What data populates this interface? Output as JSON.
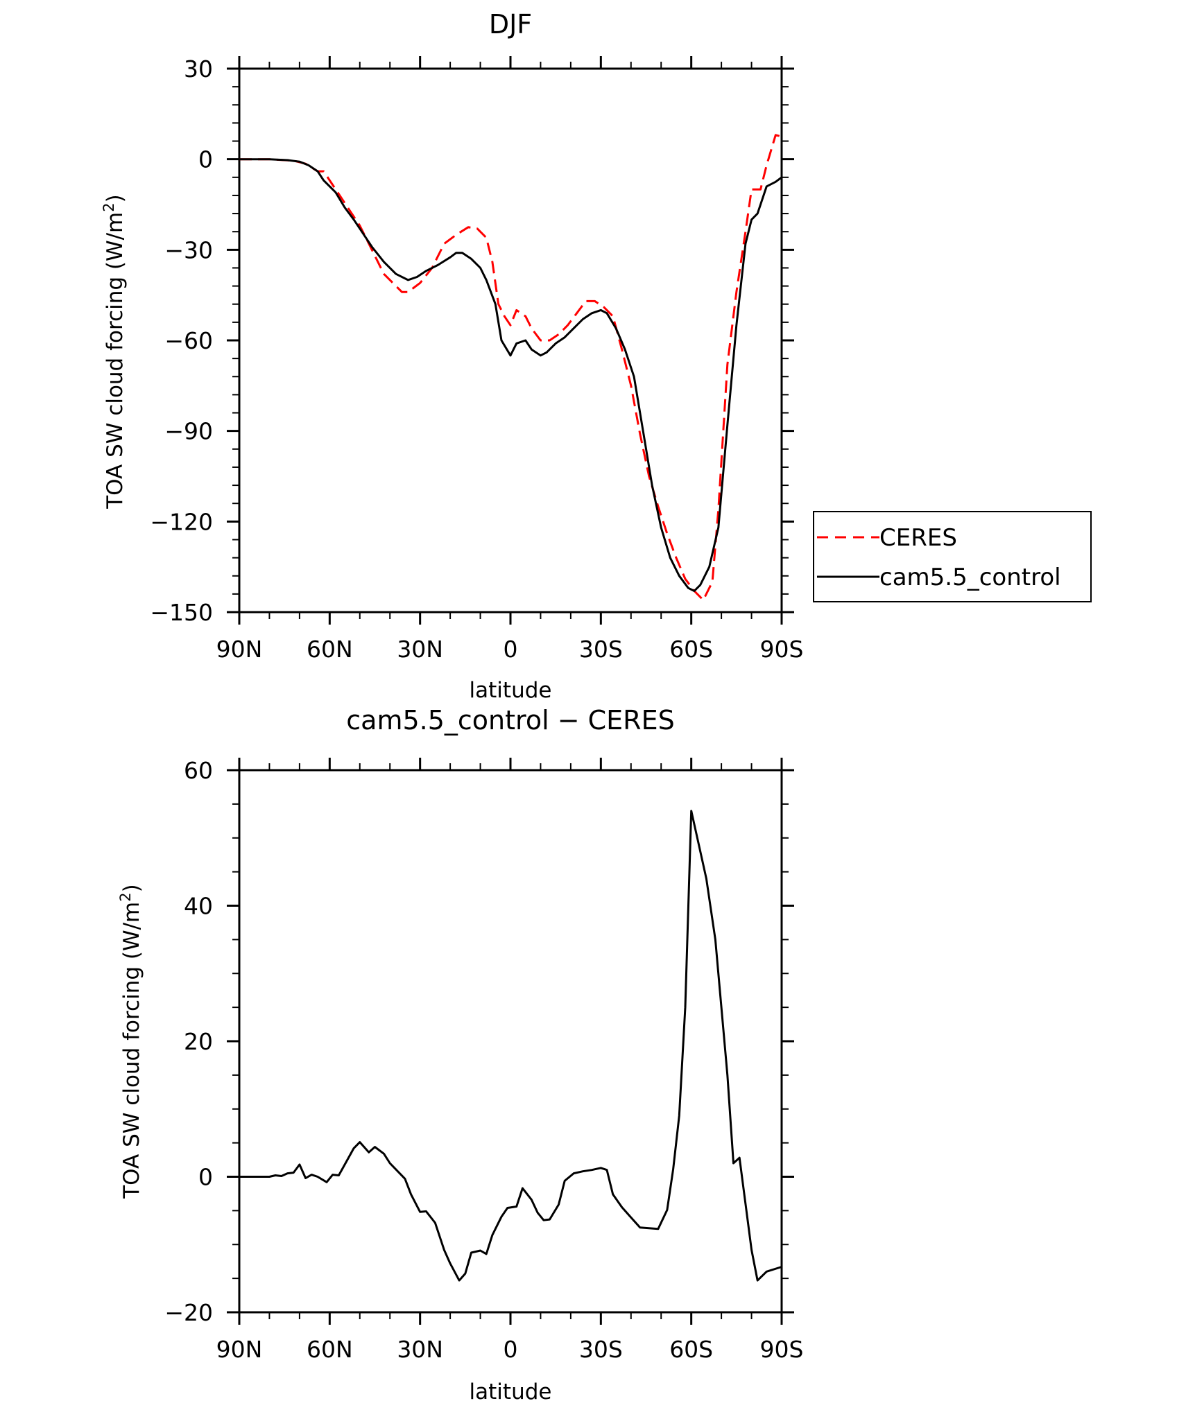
{
  "chart_data": [
    {
      "type": "line",
      "title": "DJF",
      "xlabel": "latitude",
      "ylabel": "TOA SW cloud forcing (W/m",
      "ylabel_sup": "2",
      "ylabel_close": ")",
      "xlim": [
        90,
        -90
      ],
      "ylim": [
        -150,
        30
      ],
      "x_ticks": [
        {
          "v": 90,
          "label": "90N"
        },
        {
          "v": 60,
          "label": "60N"
        },
        {
          "v": 30,
          "label": "30N"
        },
        {
          "v": 0,
          "label": "0"
        },
        {
          "v": -30,
          "label": "30S"
        },
        {
          "v": -60,
          "label": "60S"
        },
        {
          "v": -90,
          "label": "90S"
        }
      ],
      "y_ticks": [
        {
          "v": 30,
          "label": "30"
        },
        {
          "v": 0,
          "label": "0"
        },
        {
          "v": -30,
          "label": "−30"
        },
        {
          "v": -60,
          "label": "−60"
        },
        {
          "v": -90,
          "label": "−90"
        },
        {
          "v": -120,
          "label": "−120"
        },
        {
          "v": -150,
          "label": "−150"
        }
      ],
      "legend": {
        "position": "right",
        "entries": [
          "CERES",
          "cam5.5_control"
        ]
      },
      "series": [
        {
          "name": "CERES",
          "color": "#ff0000",
          "dash": "dashed",
          "points": [
            [
              90,
              0
            ],
            [
              80,
              0
            ],
            [
              72,
              -0.5
            ],
            [
              68,
              -1.5
            ],
            [
              64,
              -4
            ],
            [
              62,
              -4
            ],
            [
              58,
              -10
            ],
            [
              54,
              -16
            ],
            [
              50,
              -22
            ],
            [
              46,
              -30
            ],
            [
              42,
              -38
            ],
            [
              40,
              -40
            ],
            [
              36,
              -44
            ],
            [
              34,
              -44
            ],
            [
              30,
              -41
            ],
            [
              26,
              -36
            ],
            [
              22,
              -28
            ],
            [
              18,
              -25
            ],
            [
              14,
              -22.5
            ],
            [
              11,
              -23
            ],
            [
              8,
              -26
            ],
            [
              6,
              -34
            ],
            [
              4,
              -48
            ],
            [
              2,
              -52
            ],
            [
              0,
              -55
            ],
            [
              -2,
              -50
            ],
            [
              -5,
              -52
            ],
            [
              -7,
              -56
            ],
            [
              -10,
              -60
            ],
            [
              -13,
              -60
            ],
            [
              -16,
              -58
            ],
            [
              -19,
              -55
            ],
            [
              -22,
              -51
            ],
            [
              -25,
              -47
            ],
            [
              -28,
              -47
            ],
            [
              -31,
              -49
            ],
            [
              -34,
              -52
            ],
            [
              -37,
              -63
            ],
            [
              -40,
              -75
            ],
            [
              -43,
              -91
            ],
            [
              -46,
              -105
            ],
            [
              -49,
              -115
            ],
            [
              -52,
              -124
            ],
            [
              -55,
              -132
            ],
            [
              -58,
              -139
            ],
            [
              -61,
              -143
            ],
            [
              -64,
              -146
            ],
            [
              -67,
              -140
            ],
            [
              -69,
              -116
            ],
            [
              -72,
              -68
            ],
            [
              -75,
              -44
            ],
            [
              -78,
              -24
            ],
            [
              -80,
              -10
            ],
            [
              -83,
              -10
            ],
            [
              -85,
              -2
            ],
            [
              -88,
              8
            ],
            [
              -90,
              7.5
            ]
          ]
        },
        {
          "name": "cam5.5_control",
          "color": "#000000",
          "dash": "solid",
          "points": [
            [
              90,
              0
            ],
            [
              80,
              0
            ],
            [
              74,
              -0.3
            ],
            [
              70,
              -0.8
            ],
            [
              67,
              -2
            ],
            [
              64,
              -4
            ],
            [
              62,
              -7
            ],
            [
              58,
              -11
            ],
            [
              55,
              -16
            ],
            [
              52,
              -20
            ],
            [
              50,
              -23
            ],
            [
              46,
              -29
            ],
            [
              42,
              -34
            ],
            [
              38,
              -38
            ],
            [
              34,
              -40
            ],
            [
              31,
              -39
            ],
            [
              28,
              -37
            ],
            [
              24,
              -35
            ],
            [
              20,
              -32.5
            ],
            [
              18,
              -31
            ],
            [
              16,
              -31
            ],
            [
              13,
              -33
            ],
            [
              10,
              -36
            ],
            [
              8,
              -40
            ],
            [
              5,
              -48
            ],
            [
              3,
              -60
            ],
            [
              0,
              -65
            ],
            [
              -2,
              -61
            ],
            [
              -5,
              -60
            ],
            [
              -7,
              -63
            ],
            [
              -10,
              -65
            ],
            [
              -12,
              -64
            ],
            [
              -15,
              -61
            ],
            [
              -18,
              -59
            ],
            [
              -21,
              -56
            ],
            [
              -24,
              -53
            ],
            [
              -27,
              -51
            ],
            [
              -30,
              -50
            ],
            [
              -32,
              -51
            ],
            [
              -35,
              -56
            ],
            [
              -38,
              -63
            ],
            [
              -41,
              -72
            ],
            [
              -44,
              -90
            ],
            [
              -47,
              -108
            ],
            [
              -50,
              -122
            ],
            [
              -53,
              -132
            ],
            [
              -56,
              -138
            ],
            [
              -59,
              -142
            ],
            [
              -61,
              -143
            ],
            [
              -63,
              -141
            ],
            [
              -66,
              -135
            ],
            [
              -69,
              -122
            ],
            [
              -72,
              -88
            ],
            [
              -75,
              -55
            ],
            [
              -78,
              -28
            ],
            [
              -80,
              -20
            ],
            [
              -82,
              -18
            ],
            [
              -85,
              -9
            ],
            [
              -88,
              -7.5
            ],
            [
              -90,
              -6
            ]
          ]
        }
      ]
    },
    {
      "type": "line",
      "title": "cam5.5_control − CERES",
      "xlabel": "latitude",
      "ylabel": "TOA SW cloud forcing (W/m",
      "ylabel_sup": "2",
      "ylabel_close": ")",
      "xlim": [
        90,
        -90
      ],
      "ylim": [
        -20,
        60
      ],
      "x_ticks": [
        {
          "v": 90,
          "label": "90N"
        },
        {
          "v": 60,
          "label": "60N"
        },
        {
          "v": 30,
          "label": "30N"
        },
        {
          "v": 0,
          "label": "0"
        },
        {
          "v": -30,
          "label": "30S"
        },
        {
          "v": -60,
          "label": "60S"
        },
        {
          "v": -90,
          "label": "90S"
        }
      ],
      "y_ticks": [
        {
          "v": 60,
          "label": "60"
        },
        {
          "v": 40,
          "label": "40"
        },
        {
          "v": 20,
          "label": "20"
        },
        {
          "v": 0,
          "label": "0"
        },
        {
          "v": -20,
          "label": "−20"
        }
      ],
      "series": [
        {
          "name": "",
          "color": "#000000",
          "dash": "solid",
          "points": [
            [
              90,
              0
            ],
            [
              84,
              0
            ],
            [
              80,
              0
            ],
            [
              78,
              0.2
            ],
            [
              76,
              0.1
            ],
            [
              74,
              0.5
            ],
            [
              72,
              0.6
            ],
            [
              70,
              1.8
            ],
            [
              68,
              -0.2
            ],
            [
              66,
              0.3
            ],
            [
              64,
              0
            ],
            [
              61,
              -0.8
            ],
            [
              59,
              0.3
            ],
            [
              57,
              0.2
            ],
            [
              55,
              1.8
            ],
            [
              52,
              4.2
            ],
            [
              50,
              5.1
            ],
            [
              47,
              3.6
            ],
            [
              45,
              4.4
            ],
            [
              42,
              3.4
            ],
            [
              40,
              2
            ],
            [
              37,
              0.6
            ],
            [
              35,
              -0.3
            ],
            [
              33,
              -2.6
            ],
            [
              30,
              -5.2
            ],
            [
              28,
              -5.1
            ],
            [
              25,
              -6.8
            ],
            [
              22,
              -10.8
            ],
            [
              20,
              -12.8
            ],
            [
              17,
              -15.3
            ],
            [
              15,
              -14.3
            ],
            [
              13,
              -11.2
            ],
            [
              10,
              -10.9
            ],
            [
              8,
              -11.4
            ],
            [
              6,
              -8.6
            ],
            [
              3,
              -5.9
            ],
            [
              1,
              -4.6
            ],
            [
              -2,
              -4.4
            ],
            [
              -4,
              -1.7
            ],
            [
              -7,
              -3.4
            ],
            [
              -9,
              -5.3
            ],
            [
              -11,
              -6.4
            ],
            [
              -13,
              -6.3
            ],
            [
              -16,
              -4.1
            ],
            [
              -18,
              -0.6
            ],
            [
              -21,
              0.5
            ],
            [
              -24,
              0.8
            ],
            [
              -27,
              1
            ],
            [
              -30,
              1.3
            ],
            [
              -32,
              1
            ],
            [
              -34,
              -2.6
            ],
            [
              -37,
              -4.5
            ],
            [
              -40,
              -6
            ],
            [
              -43,
              -7.5
            ],
            [
              -46,
              -7.6
            ],
            [
              -49,
              -7.7
            ],
            [
              -52,
              -4.9
            ],
            [
              -54,
              1.1
            ],
            [
              -56,
              9
            ],
            [
              -58,
              25
            ],
            [
              -60,
              54
            ],
            [
              -62,
              50
            ],
            [
              -65,
              44
            ],
            [
              -68,
              35
            ],
            [
              -70,
              25
            ],
            [
              -72,
              15
            ],
            [
              -74,
              2
            ],
            [
              -76,
              2.8
            ],
            [
              -78,
              -4
            ],
            [
              -80,
              -10.8
            ],
            [
              -82,
              -15.3
            ],
            [
              -85,
              -14
            ],
            [
              -90,
              -13.3
            ]
          ]
        }
      ]
    }
  ]
}
